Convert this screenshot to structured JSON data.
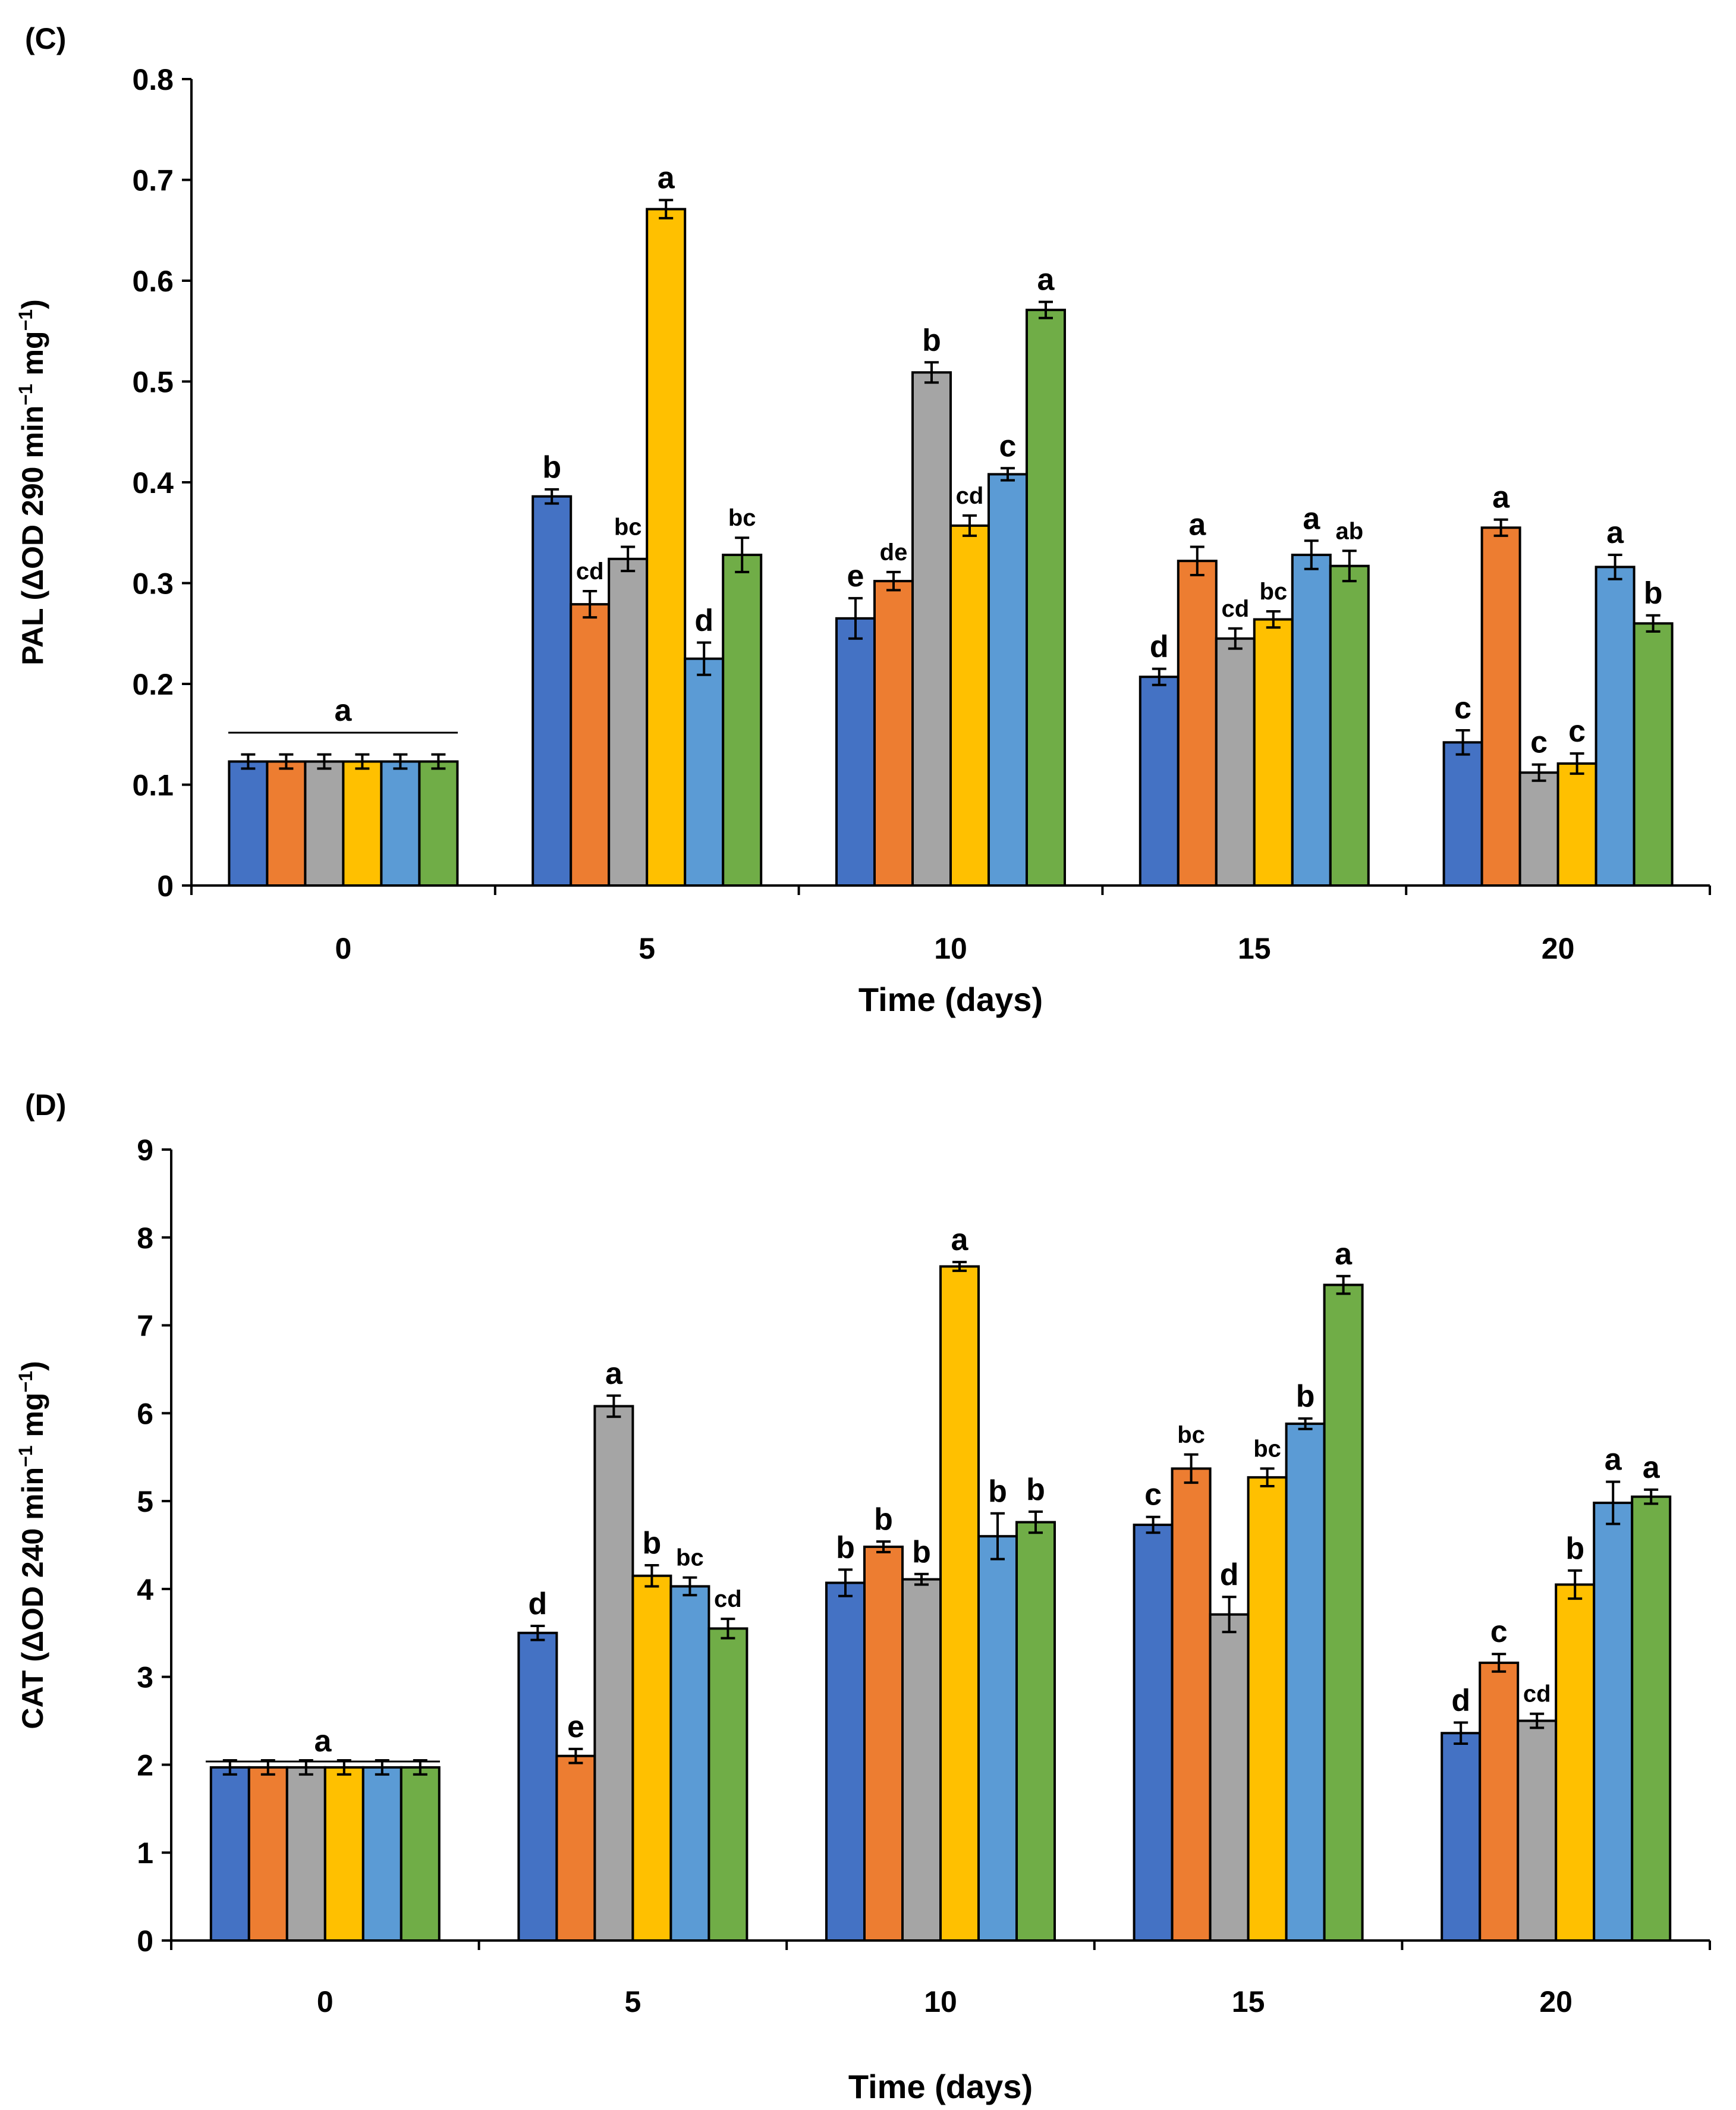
{
  "chart_data": [
    {
      "panel": "(C)",
      "type": "bar",
      "ylabel_parts": [
        "PAL (ΔOD 290 min",
        "−1",
        " mg",
        "−1",
        ")"
      ],
      "xlabel": "Time (days)",
      "categories": [
        "0",
        "5",
        "10",
        "15",
        "20"
      ],
      "ylim": [
        0,
        0.8
      ],
      "yticks": [
        0,
        0.1,
        0.2,
        0.3,
        0.4,
        0.5,
        0.6,
        0.7,
        0.8
      ],
      "ytick_labels": [
        "0",
        "0.1",
        "0.2",
        "0.3",
        "0.4",
        "0.5",
        "0.6",
        "0.7",
        "0.8"
      ],
      "series_colors": [
        "#4472C4",
        "#ED7D31",
        "#A5A5A5",
        "#FFC000",
        "#5B9BD5",
        "#70AD47"
      ],
      "values": [
        [
          0.123,
          0.123,
          0.123,
          0.123,
          0.123,
          0.123
        ],
        [
          0.386,
          0.279,
          0.324,
          0.671,
          0.225,
          0.328
        ],
        [
          0.265,
          0.302,
          0.509,
          0.357,
          0.408,
          0.571
        ],
        [
          0.207,
          0.322,
          0.245,
          0.264,
          0.328,
          0.317
        ],
        [
          0.142,
          0.355,
          0.112,
          0.121,
          0.316,
          0.26
        ]
      ],
      "errors": [
        [
          0.007,
          0.007,
          0.007,
          0.007,
          0.007,
          0.007
        ],
        [
          0.007,
          0.013,
          0.012,
          0.009,
          0.016,
          0.017
        ],
        [
          0.02,
          0.009,
          0.01,
          0.01,
          0.006,
          0.008
        ],
        [
          0.008,
          0.014,
          0.01,
          0.008,
          0.014,
          0.015
        ],
        [
          0.012,
          0.008,
          0.008,
          0.01,
          0.012,
          0.008
        ]
      ],
      "letters": [
        [],
        [
          "b",
          "cd",
          "bc",
          "a",
          "d",
          "bc"
        ],
        [
          "e",
          "de",
          "b",
          "cd",
          "c",
          "a"
        ],
        [
          "d",
          "a",
          "cd",
          "bc",
          "a",
          "ab"
        ],
        [
          "c",
          "a",
          "c",
          "c",
          "a",
          "b"
        ]
      ],
      "day0_letter": "a"
    },
    {
      "panel": "(D)",
      "type": "bar",
      "ylabel_parts": [
        "CAT (ΔOD 240 min",
        "−1",
        " mg",
        "−1",
        ")"
      ],
      "xlabel": "Time (days)",
      "categories": [
        "0",
        "5",
        "10",
        "15",
        "20"
      ],
      "ylim": [
        0,
        9
      ],
      "yticks": [
        0,
        1,
        2,
        3,
        4,
        5,
        6,
        7,
        8,
        9
      ],
      "ytick_labels": [
        "0",
        "1",
        "2",
        "3",
        "4",
        "5",
        "6",
        "7",
        "8",
        "9"
      ],
      "series_colors": [
        "#4472C4",
        "#ED7D31",
        "#A5A5A5",
        "#FFC000",
        "#5B9BD5",
        "#70AD47"
      ],
      "values": [
        [
          1.97,
          1.97,
          1.97,
          1.97,
          1.97,
          1.97
        ],
        [
          3.5,
          2.1,
          6.08,
          4.15,
          4.03,
          3.55
        ],
        [
          4.07,
          4.48,
          4.11,
          7.67,
          4.6,
          4.76
        ],
        [
          4.73,
          5.37,
          3.71,
          5.27,
          5.88,
          7.46
        ],
        [
          2.36,
          3.16,
          2.5,
          4.05,
          4.98,
          5.05
        ]
      ],
      "errors": [
        [
          0.08,
          0.08,
          0.08,
          0.08,
          0.08,
          0.08
        ],
        [
          0.08,
          0.08,
          0.12,
          0.12,
          0.1,
          0.11
        ],
        [
          0.15,
          0.06,
          0.06,
          0.05,
          0.26,
          0.12
        ],
        [
          0.09,
          0.16,
          0.2,
          0.1,
          0.06,
          0.1
        ],
        [
          0.12,
          0.1,
          0.08,
          0.16,
          0.24,
          0.08
        ]
      ],
      "letters": [
        [],
        [
          "d",
          "e",
          "a",
          "b",
          "bc",
          "cd"
        ],
        [
          "b",
          "b",
          "b",
          "a",
          "b",
          "b"
        ],
        [
          "c",
          "bc",
          "d",
          "bc",
          "b",
          "a"
        ],
        [
          "d",
          "c",
          "cd",
          "b",
          "a",
          "a"
        ]
      ],
      "day0_letter": "a"
    }
  ]
}
